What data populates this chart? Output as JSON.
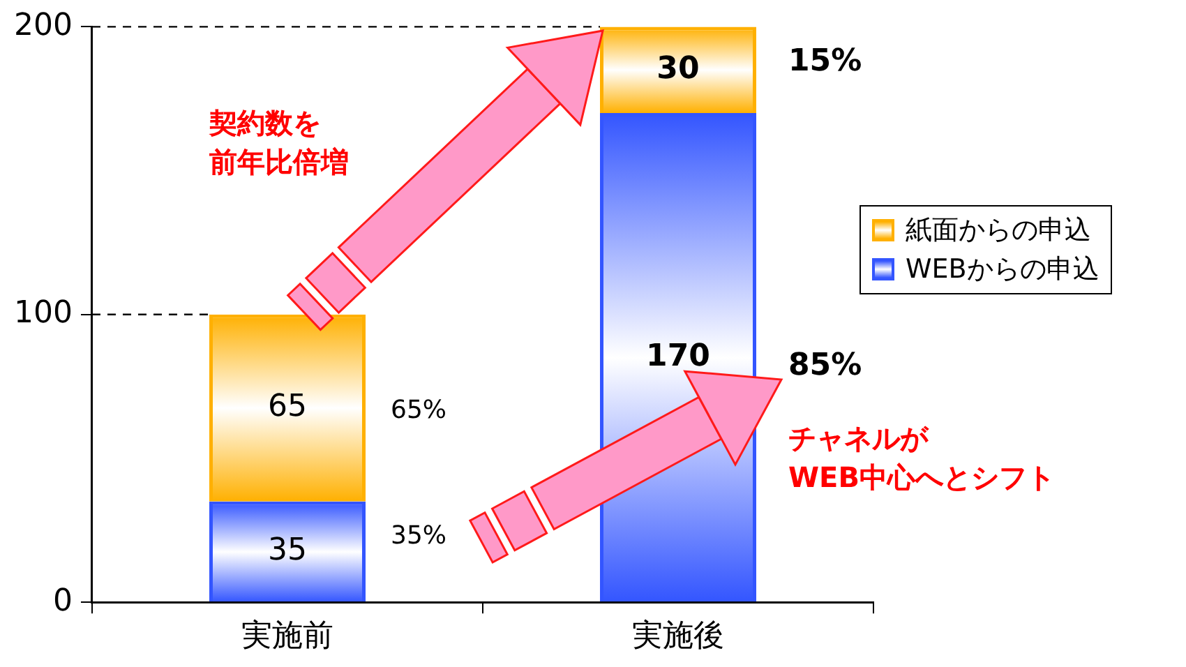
{
  "chart_data": {
    "type": "bar",
    "stacked": true,
    "categories": [
      "実施前",
      "実施後"
    ],
    "series": [
      {
        "name": "WEBからの申込",
        "color": "#3355ff",
        "values": [
          35,
          170
        ]
      },
      {
        "name": "紙面からの申込",
        "color": "#ffb000",
        "values": [
          65,
          30
        ]
      }
    ],
    "ylim": [
      0,
      200
    ],
    "yticks": [
      0,
      100,
      200
    ],
    "grid": false,
    "legend": "right",
    "data_labels": true,
    "ref_lines": [
      {
        "axis": "y",
        "value": 100,
        "line_style": "dashed"
      },
      {
        "axis": "y",
        "value": 200,
        "line_style": "dashed"
      }
    ],
    "annotations": [
      "35%",
      "65%",
      "85%",
      "15%",
      "契約数を",
      "前年比倍増",
      "チャネルが",
      "WEB中心へとシフト"
    ]
  }
}
